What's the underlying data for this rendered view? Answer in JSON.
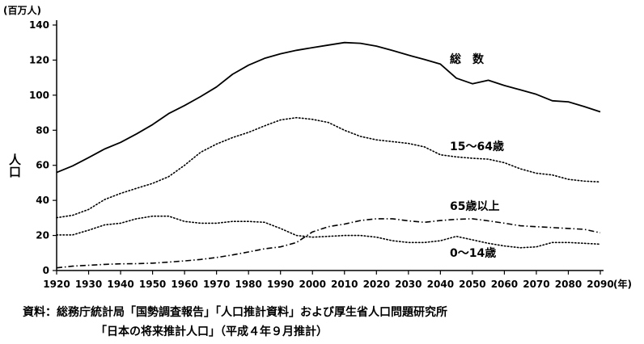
{
  "chart_data": {
    "type": "line",
    "ylabel": "人口",
    "yunit": "(百万人)",
    "xunit": "(年)",
    "ylim": [
      0,
      140
    ],
    "xlim": [
      1920,
      2090
    ],
    "yticks": [
      0,
      20,
      40,
      60,
      80,
      100,
      120,
      140
    ],
    "xticks": [
      1920,
      1930,
      1940,
      1950,
      1960,
      1970,
      1980,
      1990,
      2000,
      2010,
      2020,
      2030,
      2040,
      2050,
      2060,
      2070,
      2080,
      2090
    ],
    "grid": false,
    "series": [
      {
        "name": "総　数",
        "style": "solid",
        "x": [
          1920,
          1925,
          1930,
          1935,
          1940,
          1945,
          1950,
          1955,
          1960,
          1965,
          1970,
          1975,
          1980,
          1985,
          1990,
          1995,
          2000,
          2005,
          2010,
          2015,
          2020,
          2025,
          2030,
          2035,
          2040,
          2045,
          2050,
          2055,
          2060,
          2065,
          2070,
          2075,
          2080,
          2085,
          2090
        ],
        "values": [
          55.9,
          59.7,
          64.4,
          69.3,
          73.1,
          77.9,
          83.2,
          89.5,
          94.1,
          99.2,
          104.7,
          111.9,
          117.1,
          121.0,
          123.6,
          125.6,
          127.1,
          128.6,
          130.0,
          129.6,
          128.0,
          125.5,
          122.8,
          120.4,
          117.7,
          109.7,
          106.5,
          108.5,
          105.5,
          103.0,
          100.5,
          96.8,
          96.2,
          93.5,
          90.5
        ]
      },
      {
        "name": "15〜64歳",
        "style": "dotted",
        "x": [
          1920,
          1925,
          1930,
          1935,
          1940,
          1945,
          1950,
          1955,
          1960,
          1965,
          1970,
          1975,
          1980,
          1985,
          1990,
          1995,
          2000,
          2005,
          2010,
          2015,
          2020,
          2025,
          2030,
          2035,
          2040,
          2045,
          2050,
          2055,
          2060,
          2065,
          2070,
          2075,
          2080,
          2085,
          2090
        ],
        "values": [
          30.1,
          31.5,
          34.8,
          40.5,
          44.0,
          46.9,
          49.7,
          53.5,
          60.0,
          67.4,
          72.1,
          75.8,
          78.8,
          82.5,
          85.9,
          87.2,
          86.2,
          84.4,
          80.0,
          76.5,
          74.5,
          73.5,
          72.5,
          70.5,
          66.0,
          64.8,
          64.0,
          63.5,
          61.5,
          58.0,
          55.5,
          54.5,
          52.0,
          51.0,
          50.5
        ]
      },
      {
        "name": "65歳以上",
        "style": "dashdot",
        "x": [
          1920,
          1925,
          1930,
          1935,
          1940,
          1945,
          1950,
          1955,
          1960,
          1965,
          1970,
          1975,
          1980,
          1985,
          1990,
          1995,
          2000,
          2005,
          2010,
          2015,
          2020,
          2025,
          2030,
          2035,
          2040,
          2045,
          2050,
          2055,
          2060,
          2065,
          2070,
          2075,
          2080,
          2085,
          2090
        ],
        "values": [
          1.5,
          2.5,
          3.0,
          3.5,
          3.8,
          3.9,
          4.2,
          4.8,
          5.5,
          6.3,
          7.4,
          8.9,
          10.6,
          12.4,
          13.5,
          16.0,
          22.0,
          25.0,
          26.5,
          28.5,
          29.5,
          29.5,
          28.3,
          27.5,
          28.5,
          29.2,
          29.5,
          28.3,
          27.0,
          25.5,
          25.0,
          24.5,
          24.0,
          23.5,
          21.5
        ]
      },
      {
        "name": "0〜14歳",
        "style": "dotted",
        "x": [
          1920,
          1925,
          1930,
          1935,
          1940,
          1945,
          1950,
          1955,
          1960,
          1965,
          1970,
          1975,
          1980,
          1985,
          1990,
          1995,
          2000,
          2005,
          2010,
          2015,
          2020,
          2025,
          2030,
          2035,
          2040,
          2045,
          2050,
          2055,
          2060,
          2065,
          2070,
          2075,
          2080,
          2085,
          2090
        ],
        "values": [
          20.3,
          20.3,
          23.0,
          26.0,
          27.0,
          29.5,
          31.0,
          31.0,
          28.0,
          27.0,
          27.0,
          28.0,
          28.0,
          27.5,
          24.0,
          20.0,
          19.0,
          19.5,
          20.0,
          20.0,
          19.0,
          17.0,
          16.0,
          16.0,
          17.0,
          19.5,
          17.5,
          15.5,
          14.0,
          13.0,
          13.5,
          16.0,
          16.0,
          15.5,
          15.0
        ]
      }
    ]
  },
  "source": {
    "line1": "資料：総務庁統計局「国勢調査報告」「人口推計資料」および厚生省人口問題研究所",
    "line2": "「日本の将来推計人口」（平成４年９月推計）"
  }
}
